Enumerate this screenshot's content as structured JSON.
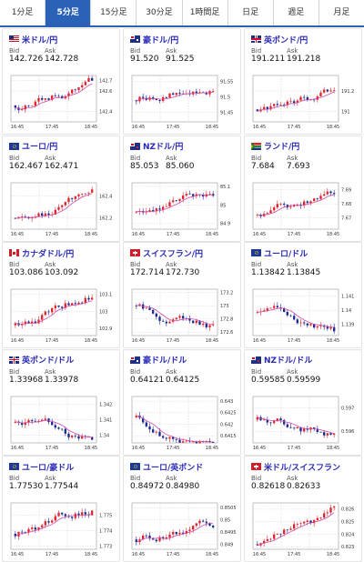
{
  "tabs": [
    {
      "label": "1分足",
      "active": false
    },
    {
      "label": "5分足",
      "active": true
    },
    {
      "label": "15分足",
      "active": false
    },
    {
      "label": "30分足",
      "active": false
    },
    {
      "label": "1時間足",
      "active": false
    },
    {
      "label": "日足",
      "active": false
    },
    {
      "label": "週足",
      "active": false
    },
    {
      "label": "月足",
      "active": false
    }
  ],
  "labels": {
    "bid": "Bid",
    "ask": "Ask"
  },
  "colors": {
    "up": "#e0252d",
    "down": "#1d2a8f",
    "ma": "#d04aa8",
    "accent": "#2a62b8"
  },
  "pairs": [
    {
      "name": "米ドル/円",
      "flag": "us",
      "bid": "142.726",
      "ask": "142.728",
      "chart_data": {
        "type": "candlestick",
        "x_ticks": [
          "16:45",
          "17:45",
          "18:45"
        ],
        "y_ticks": [
          "142.7",
          "142.6",
          "142.4"
        ],
        "ylim": [
          142.3,
          142.75
        ],
        "start": 142.46,
        "end": 142.7
      }
    },
    {
      "name": "豪ドル/円",
      "flag": "au",
      "bid": "91.520",
      "ask": "91.525",
      "chart_data": {
        "type": "candlestick",
        "x_ticks": [
          "16:45",
          "17:45",
          "18:45"
        ],
        "y_ticks": [
          "91.55",
          "91.5",
          "91.45"
        ],
        "ylim": [
          91.42,
          91.57
        ],
        "start": 91.49,
        "end": 91.52
      }
    },
    {
      "name": "英ポンド/円",
      "flag": "gb",
      "bid": "191.211",
      "ask": "191.218",
      "chart_data": {
        "type": "candlestick",
        "x_ticks": [
          "16:45",
          "17:45",
          "18:45"
        ],
        "y_ticks": [
          "191.2",
          "191"
        ],
        "ylim": [
          190.9,
          191.35
        ],
        "start": 191.02,
        "end": 191.21
      }
    },
    {
      "name": "ユーロ/円",
      "flag": "eu",
      "bid": "162.467",
      "ask": "162.471",
      "chart_data": {
        "type": "candlestick",
        "x_ticks": [
          "16:45",
          "17:45",
          "18:45"
        ],
        "y_ticks": [
          "162.4",
          "162.2"
        ],
        "ylim": [
          162.1,
          162.52
        ],
        "start": 162.2,
        "end": 162.46
      }
    },
    {
      "name": "NZドル/円",
      "flag": "nz",
      "bid": "85.053",
      "ask": "85.060",
      "chart_data": {
        "type": "candlestick",
        "x_ticks": [
          "16:45",
          "17:45",
          "18:45"
        ],
        "y_ticks": [
          "85.1",
          "85",
          "84.9"
        ],
        "ylim": [
          84.87,
          85.12
        ],
        "start": 84.96,
        "end": 85.05
      }
    },
    {
      "name": "ランド/円",
      "flag": "za",
      "bid": "7.684",
      "ask": "7.693",
      "chart_data": {
        "type": "candlestick",
        "x_ticks": [
          "16:45",
          "17:45",
          "18:45"
        ],
        "y_ticks": [
          "7.69",
          "7.68",
          "7.67"
        ],
        "ylim": [
          7.662,
          7.695
        ],
        "start": 7.672,
        "end": 7.687
      }
    },
    {
      "name": "カナダドル/円",
      "flag": "ca",
      "bid": "103.086",
      "ask": "103.092",
      "chart_data": {
        "type": "candlestick",
        "x_ticks": [
          "16:45",
          "17:45",
          "18:45"
        ],
        "y_ticks": [
          "103.1",
          "103",
          "102.9"
        ],
        "ylim": [
          102.86,
          103.13
        ],
        "start": 102.92,
        "end": 103.08
      }
    },
    {
      "name": "スイスフラン/円",
      "flag": "ch",
      "bid": "172.714",
      "ask": "172.730",
      "chart_data": {
        "type": "candlestick",
        "x_ticks": [
          "16:45",
          "17:45",
          "18:45"
        ],
        "y_ticks": [
          "173.2",
          "173",
          "172.8",
          "172.6"
        ],
        "ylim": [
          172.55,
          173.25
        ],
        "start": 173.0,
        "end": 172.72
      }
    },
    {
      "name": "ユーロ/ドル",
      "flag": "eu",
      "bid": "1.13842",
      "ask": "1.13845",
      "chart_data": {
        "type": "candlestick",
        "x_ticks": [
          "16:45",
          "17:45",
          "18:45"
        ],
        "y_ticks": [
          "1.141",
          "1.14",
          "1.139"
        ],
        "ylim": [
          1.1382,
          1.1415
        ],
        "start": 1.1398,
        "end": 1.1385
      }
    },
    {
      "name": "英ポンド/ドル",
      "flag": "gb",
      "bid": "1.33968",
      "ask": "1.33978",
      "chart_data": {
        "type": "candlestick",
        "x_ticks": [
          "16:45",
          "17:45",
          "18:45"
        ],
        "y_ticks": [
          "1.342",
          "1.341",
          "1.34"
        ],
        "ylim": [
          1.3395,
          1.3425
        ],
        "start": 1.3408,
        "end": 1.3397
      }
    },
    {
      "name": "豪ドル/ドル",
      "flag": "au",
      "bid": "0.64121",
      "ask": "0.64125",
      "chart_data": {
        "type": "candlestick",
        "x_ticks": [
          "16:45",
          "17:45",
          "18:45"
        ],
        "y_ticks": [
          "0.643",
          "0.6425",
          "0.642",
          "0.6415"
        ],
        "ylim": [
          0.6412,
          0.6432
        ],
        "start": 0.6423,
        "end": 0.6412
      }
    },
    {
      "name": "NZドル/ドル",
      "flag": "nz",
      "bid": "0.59585",
      "ask": "0.59599",
      "chart_data": {
        "type": "candlestick",
        "x_ticks": [
          "16:45",
          "17:45",
          "18:45"
        ],
        "y_ticks": [
          "0.597",
          "0.596"
        ],
        "ylim": [
          0.5955,
          0.5975
        ],
        "start": 0.5965,
        "end": 0.5959
      }
    },
    {
      "name": "ユーロ/豪ドル",
      "flag": "eu",
      "bid": "1.77530",
      "ask": "1.77544",
      "chart_data": {
        "type": "candlestick",
        "x_ticks": [
          "16:45",
          "17:45",
          "18:45"
        ],
        "y_ticks": [
          "1.775",
          "1.774",
          "1.773"
        ],
        "ylim": [
          1.7728,
          1.7758
        ],
        "start": 1.7738,
        "end": 1.7753
      }
    },
    {
      "name": "ユーロ/英ポンド",
      "flag": "eu",
      "bid": "0.84972",
      "ask": "0.84980",
      "chart_data": {
        "type": "candlestick",
        "x_ticks": [
          "16:45",
          "17:45",
          "18:45"
        ],
        "y_ticks": [
          "0.8505",
          "0.85",
          "0.8495",
          "0.849"
        ],
        "ylim": [
          0.8488,
          0.8507
        ],
        "start": 0.8492,
        "end": 0.8497
      }
    },
    {
      "name": "米ドル/スイスフラン",
      "flag": "ch",
      "bid": "0.82618",
      "ask": "0.82633",
      "chart_data": {
        "type": "candlestick",
        "x_ticks": [
          "16:45",
          "17:45",
          "18:45"
        ],
        "y_ticks": [
          "0.826",
          "0.825",
          "0.824",
          "0.823"
        ],
        "ylim": [
          0.8228,
          0.8265
        ],
        "start": 0.8232,
        "end": 0.8262
      }
    }
  ]
}
